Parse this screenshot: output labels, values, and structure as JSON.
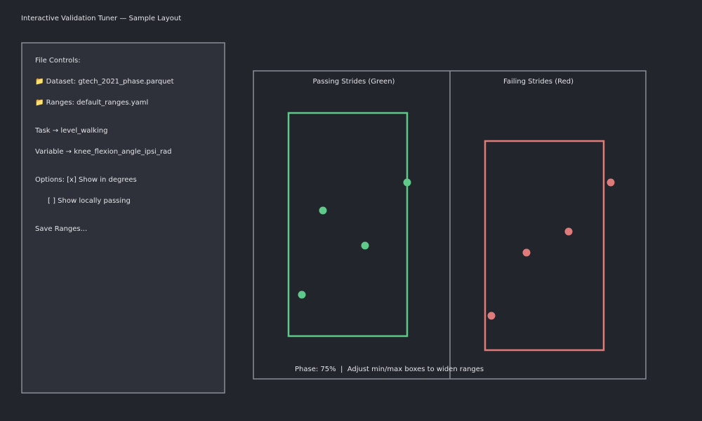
{
  "header": {
    "title": "Interactive Validation Tuner — Sample Layout"
  },
  "sidebar": {
    "heading": "File Controls:",
    "dataset": "📁 Dataset: gtech_2021_phase.parquet",
    "ranges": "📁 Ranges: default_ranges.yaml",
    "task": "Task → level_walking",
    "variable": "Variable → knee_flexion_angle_ipsi_rad",
    "option_degrees": "Options: [x] Show in degrees",
    "option_local": "[ ] Show locally passing",
    "save": "Save Ranges..."
  },
  "panels": [
    {
      "title": "Passing Strides (Green)"
    },
    {
      "title": "Failing Strides (Red)"
    }
  ],
  "footer": {
    "status": "Phase: 75%  |  Adjust min/max boxes to widen ranges"
  }
}
